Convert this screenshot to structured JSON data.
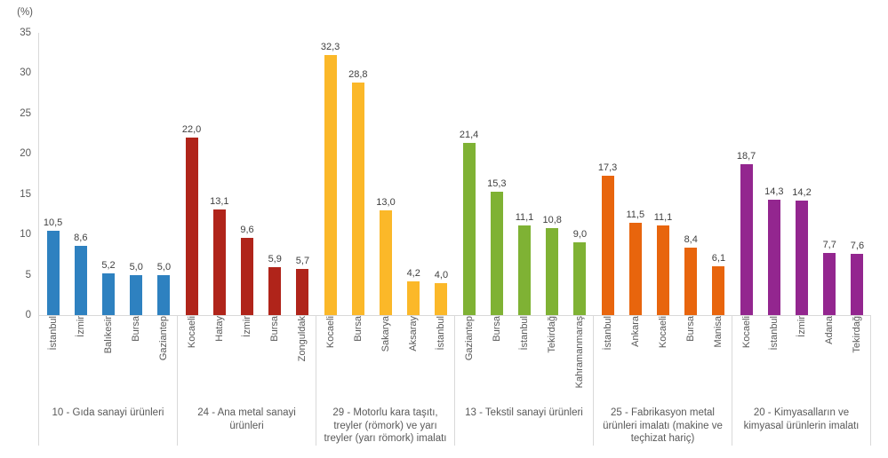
{
  "chart_data": {
    "type": "bar",
    "title": "",
    "xlabel": "",
    "ylabel": "(%)",
    "ylim": [
      0,
      35
    ],
    "yticks": [
      "0",
      "5",
      "10",
      "15",
      "20",
      "25",
      "30",
      "35"
    ],
    "grid": false,
    "legend_position": "none",
    "axis_color": "#d9d9d9",
    "tick_text_color": "#595959",
    "value_label_color": "#3f3f3f",
    "groups": [
      {
        "label": "10 - Gıda sanayi ürünleri",
        "color": "#2e81c0",
        "bars": [
          {
            "city": "İstanbul",
            "value": 10.5,
            "label": "10,5"
          },
          {
            "city": "İzmir",
            "value": 8.6,
            "label": "8,6"
          },
          {
            "city": "Balıkesir",
            "value": 5.2,
            "label": "5,2"
          },
          {
            "city": "Bursa",
            "value": 5.0,
            "label": "5,0"
          },
          {
            "city": "Gaziantep",
            "value": 5.0,
            "label": "5,0"
          }
        ]
      },
      {
        "label": "24 - Ana metal sanayi ürünleri",
        "color": "#b0241a",
        "bars": [
          {
            "city": "Kocaeli",
            "value": 22.0,
            "label": "22,0"
          },
          {
            "city": "Hatay",
            "value": 13.1,
            "label": "13,1"
          },
          {
            "city": "İzmir",
            "value": 9.6,
            "label": "9,6"
          },
          {
            "city": "Bursa",
            "value": 5.9,
            "label": "5,9"
          },
          {
            "city": "Zonguldak",
            "value": 5.7,
            "label": "5,7"
          }
        ]
      },
      {
        "label": "29 - Motorlu kara taşıtı, treyler (römork) ve yarı treyler (yarı römork) imalatı",
        "color": "#fbb829",
        "bars": [
          {
            "city": "Kocaeli",
            "value": 32.3,
            "label": "32,3"
          },
          {
            "city": "Bursa",
            "value": 28.8,
            "label": "28,8"
          },
          {
            "city": "Sakarya",
            "value": 13.0,
            "label": "13,0"
          },
          {
            "city": "Aksaray",
            "value": 4.2,
            "label": "4,2"
          },
          {
            "city": "İstanbul",
            "value": 4.0,
            "label": "4,0"
          }
        ]
      },
      {
        "label": "13 - Tekstil sanayi ürünleri",
        "color": "#7fb234",
        "bars": [
          {
            "city": "Gaziantep",
            "value": 21.4,
            "label": "21,4"
          },
          {
            "city": "Bursa",
            "value": 15.3,
            "label": "15,3"
          },
          {
            "city": "İstanbul",
            "value": 11.1,
            "label": "11,1"
          },
          {
            "city": "Tekirdağ",
            "value": 10.8,
            "label": "10,8"
          },
          {
            "city": "Kahramanmaraş",
            "value": 9.0,
            "label": "9,0"
          }
        ]
      },
      {
        "label": "25 - Fabrikasyon metal ürünleri imalatı (makine ve teçhizat hariç)",
        "color": "#e8650d",
        "bars": [
          {
            "city": "İstanbul",
            "value": 17.3,
            "label": "17,3"
          },
          {
            "city": "Ankara",
            "value": 11.5,
            "label": "11,5"
          },
          {
            "city": "Kocaeli",
            "value": 11.1,
            "label": "11,1"
          },
          {
            "city": "Bursa",
            "value": 8.4,
            "label": "8,4"
          },
          {
            "city": "Manisa",
            "value": 6.1,
            "label": "6,1"
          }
        ]
      },
      {
        "label": "20 - Kimyasalların ve kimyasal ürünlerin imalatı",
        "color": "#93268f",
        "bars": [
          {
            "city": "Kocaeli",
            "value": 18.7,
            "label": "18,7"
          },
          {
            "city": "İstanbul",
            "value": 14.3,
            "label": "14,3"
          },
          {
            "city": "İzmir",
            "value": 14.2,
            "label": "14,2"
          },
          {
            "city": "Adana",
            "value": 7.7,
            "label": "7,7"
          },
          {
            "city": "Tekirdağ",
            "value": 7.6,
            "label": "7,6"
          }
        ]
      }
    ]
  }
}
